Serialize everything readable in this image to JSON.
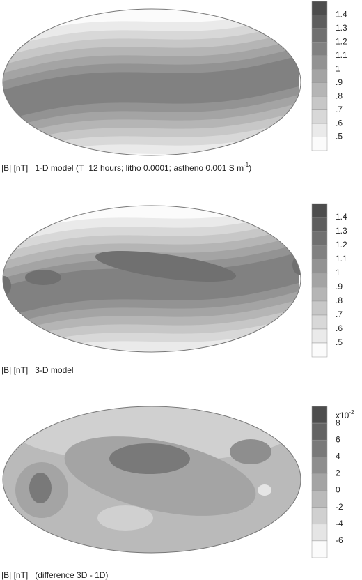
{
  "panels": [
    {
      "colorbar": {
        "ticks": [
          1.4,
          1.3,
          1.2,
          1.1,
          1,
          {
            "value": 0.9,
            "label": ".9"
          },
          {
            "value": 0.8,
            "label": ".8"
          },
          {
            "value": 0.7,
            "label": ".7"
          },
          {
            "value": 0.6,
            "label": ".6"
          },
          {
            "value": 0.5,
            "label": ".5"
          }
        ]
      },
      "caption": {
        "text": "|B| [nT]   1-D model (T=12 hours; litho 0.0001; astheno 0.001 S m",
        "superscript": "-1",
        "tail": ")"
      }
    },
    {
      "colorbar": {
        "ticks": [
          1.4,
          1.3,
          1.2,
          1.1,
          1,
          {
            "value": 0.9,
            "label": ".9"
          },
          {
            "value": 0.8,
            "label": ".8"
          },
          {
            "value": 0.7,
            "label": ".7"
          },
          {
            "value": 0.6,
            "label": ".6"
          },
          {
            "value": 0.5,
            "label": ".5"
          }
        ]
      },
      "caption": {
        "text": "|B| [nT]   3-D model"
      }
    },
    {
      "colorbar": {
        "multiplier": {
          "base": "x10",
          "exponent": "-2"
        },
        "ticks": [
          8,
          6,
          4,
          2,
          0,
          -2,
          -4,
          -6
        ]
      },
      "caption": {
        "text": "|B| [nT]   (difference 3D - 1D)"
      }
    }
  ]
}
